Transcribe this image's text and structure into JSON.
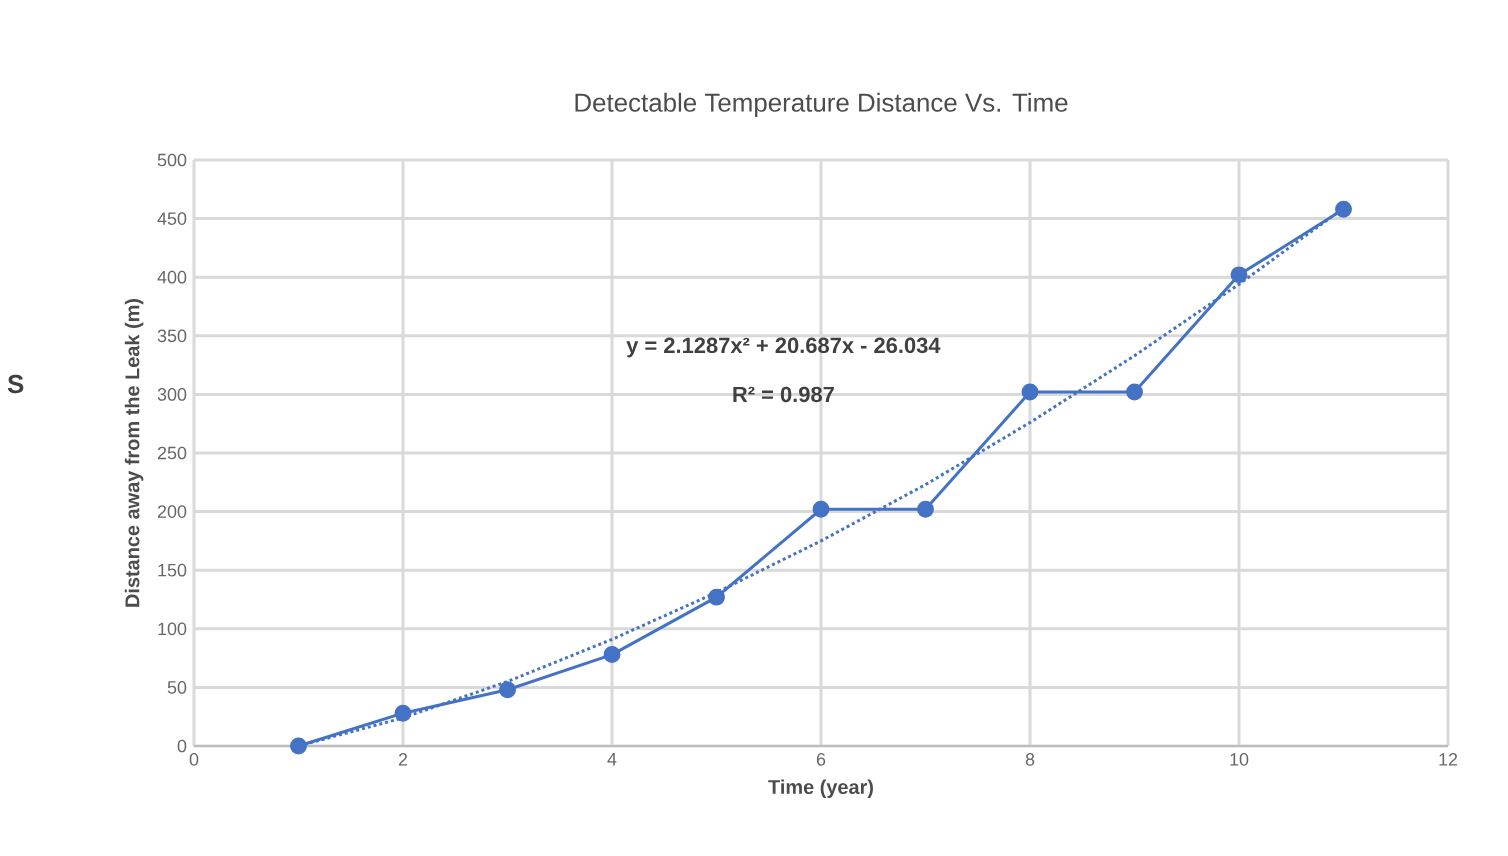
{
  "chart_data": {
    "type": "line",
    "title": "Detectable Temperature Distance Vs. Time",
    "xlabel": "Time (year)",
    "ylabel": "Distance away from the Leak (m)",
    "xlim": [
      0,
      12
    ],
    "xticks": [
      0,
      2,
      4,
      6,
      8,
      10,
      12
    ],
    "ylim": [
      0,
      500
    ],
    "yticks": [
      0,
      50,
      100,
      150,
      200,
      250,
      300,
      350,
      400,
      450,
      500
    ],
    "grid": true,
    "series": [
      {
        "color": "#4472c4",
        "marker": "circle",
        "line_style": "solid",
        "x": [
          1,
          2,
          3,
          4,
          5,
          6,
          7,
          8,
          9,
          10,
          11
        ],
        "values": [
          0,
          28,
          48,
          78,
          127,
          202,
          202,
          302,
          302,
          402,
          458
        ]
      },
      {
        "type": "line",
        "color": "#4472c4",
        "marker": "none",
        "line_style": "dotted",
        "x": [
          1,
          2,
          3,
          4,
          5,
          6,
          7,
          8,
          9,
          10,
          11
        ],
        "values": [
          0,
          24,
          55,
          91,
          131,
          175,
          223,
          276,
          333,
          394,
          459
        ]
      }
    ],
    "annotations": [
      "**y = 2.1287x² + 20.687x - 26.034**",
      "**R² = 0.987**",
      "**S**"
    ]
  }
}
